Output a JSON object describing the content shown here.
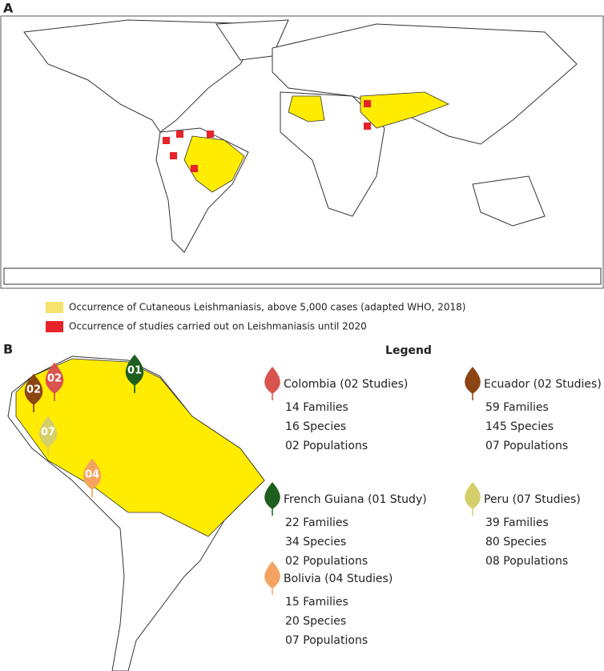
{
  "panel_a": {
    "label": "A",
    "legend": [
      {
        "text": "Occurrence of Cutaneous Leishmaniasis, above 5,000 cases (adapted WHO, 2018)",
        "color": "#f5e36a"
      },
      {
        "text": "Occurrence of studies carried out on Leishmaniasis until 2020",
        "color": "#e8232a"
      }
    ]
  },
  "panel_b": {
    "label": "B",
    "legend_title": "Legend",
    "entries": [
      {
        "name": "Colombia (02 Studies)",
        "marker": "02",
        "color": "#d9534f",
        "lines": [
          "14 Families",
          "16 Species",
          "02 Populations"
        ]
      },
      {
        "name": "Ecuador (02 Studies)",
        "marker": "02",
        "color": "#8b4513",
        "lines": [
          "59 Families",
          "145 Species",
          "07 Populations"
        ]
      },
      {
        "name": "French Guiana (01 Study)",
        "marker": "01",
        "color": "#1e5e1e",
        "lines": [
          "22 Families",
          "34 Species",
          "02 Populations"
        ]
      },
      {
        "name": "Peru (07 Studies)",
        "marker": "07",
        "color": "#d4cf6a",
        "lines": [
          "39 Families",
          "80 Species",
          "08 Populations"
        ]
      },
      {
        "name": "Bolivia (04 Studies)",
        "marker": "04",
        "color": "#f4a460",
        "lines": [
          "15 Families",
          "20 Species",
          "07 Populations"
        ]
      }
    ]
  }
}
